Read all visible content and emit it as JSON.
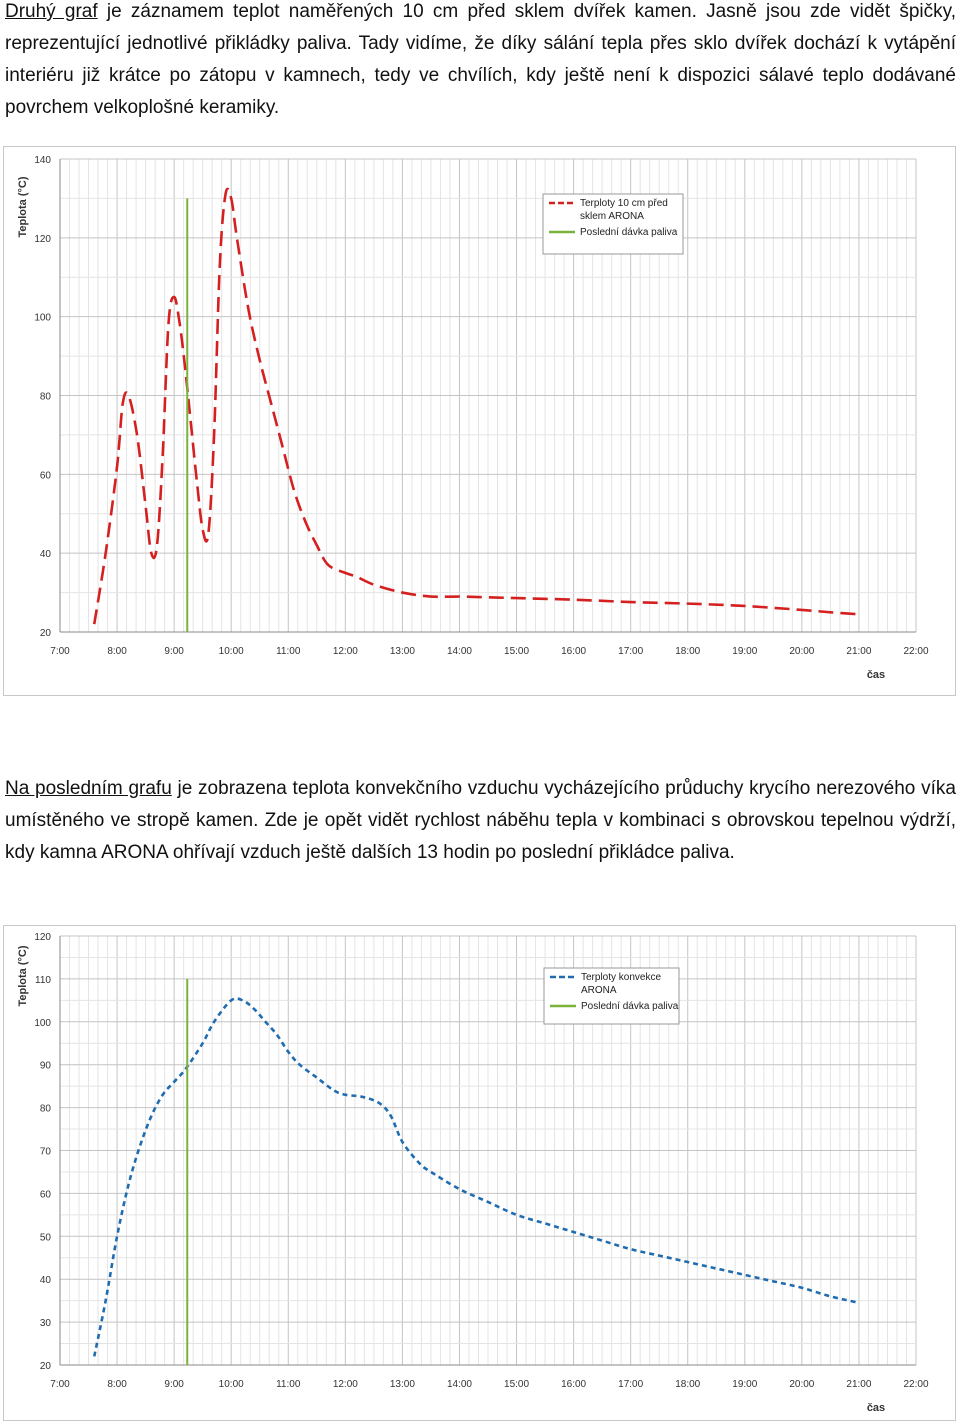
{
  "paragraph1": {
    "link_text": "Druhý graf",
    "text": " je záznamem teplot naměřených 10 cm před sklem dvířek kamen. Jasně jsou zde vidět špičky, reprezentující jednotlivé přikládky paliva. Tady vidíme, že díky sálání tepla přes sklo dvířek dochází k vytápění interiéru již krátce po zátopu v kamnech, tedy ve chvílích, kdy ještě není k dispozici sálavé teplo dodávané povrchem velkoplošné keramiky."
  },
  "paragraph2": {
    "link_text": "Na posledním grafu",
    "text": " je zobrazena teplota konvekčního vzduchu vycházejícího průduchy krycího nerezového víka umístěného ve stropě kamen. Zde je opět vidět rychlost náběhu tepla v kombinaci s obrovskou tepelnou výdrží, kdy kamna ARONA ohřívají vzduch ještě dalších 13 hodin po poslední přikládce paliva."
  },
  "chart_data": [
    {
      "type": "line",
      "ylabel": "Teplota (°C)",
      "xlabel": "čas",
      "x_ticks": [
        "7:00",
        "8:00",
        "9:00",
        "10:00",
        "11:00",
        "12:00",
        "13:00",
        "14:00",
        "15:00",
        "16:00",
        "17:00",
        "18:00",
        "19:00",
        "20:00",
        "21:00",
        "22:00"
      ],
      "y_ticks": [
        20,
        40,
        60,
        80,
        100,
        120,
        140
      ],
      "xlim": [
        7,
        22
      ],
      "ylim": [
        20,
        140
      ],
      "grid": true,
      "legend_position": "top-right",
      "series": [
        {
          "name": "Terploty 10 cm před sklem ARONA",
          "color": "#d42020",
          "dash": "dashed",
          "x": [
            7.6,
            7.8,
            8.0,
            8.1,
            8.2,
            8.35,
            8.5,
            8.6,
            8.7,
            8.8,
            8.9,
            9.0,
            9.1,
            9.2,
            9.3,
            9.4,
            9.5,
            9.6,
            9.7,
            9.8,
            9.9,
            10.0,
            10.1,
            10.3,
            10.5,
            10.7,
            10.9,
            11.1,
            11.3,
            11.5,
            11.7,
            12.0,
            12.2,
            12.5,
            13.0,
            13.5,
            14.0,
            14.5,
            15.0,
            16.0,
            17.0,
            18.0,
            19.0,
            20.0,
            20.5,
            21.0
          ],
          "y": [
            22,
            40,
            62,
            78,
            80,
            70,
            52,
            40,
            42,
            65,
            98,
            105,
            98,
            86,
            72,
            58,
            46,
            45,
            70,
            113,
            131,
            130,
            120,
            102,
            89,
            78,
            67,
            56,
            48,
            42,
            37,
            35,
            34,
            32,
            30,
            29,
            29,
            28.8,
            28.6,
            28.2,
            27.6,
            27.2,
            26.6,
            25.6,
            25,
            24.5
          ]
        },
        {
          "name": "Poslední dávka paliva",
          "color": "#7ab23c",
          "dash": "solid",
          "x": [
            9.23,
            9.23
          ],
          "y": [
            20,
            130
          ]
        }
      ]
    },
    {
      "type": "line",
      "ylabel": "Teplota (°C)",
      "xlabel": "čas",
      "x_ticks": [
        "7:00",
        "8:00",
        "9:00",
        "10:00",
        "11:00",
        "12:00",
        "13:00",
        "14:00",
        "15:00",
        "16:00",
        "17:00",
        "18:00",
        "19:00",
        "20:00",
        "21:00",
        "22:00"
      ],
      "y_ticks": [
        20,
        30,
        40,
        50,
        60,
        70,
        80,
        90,
        100,
        110,
        120
      ],
      "xlim": [
        7,
        22
      ],
      "ylim": [
        20,
        120
      ],
      "grid": true,
      "legend_position": "top-right",
      "series": [
        {
          "name": "Terploty konvekce ARONA",
          "color": "#1f6cb0",
          "dash": "dashed",
          "x": [
            7.6,
            7.8,
            8.0,
            8.2,
            8.4,
            8.6,
            8.8,
            9.0,
            9.2,
            9.5,
            9.7,
            10.0,
            10.2,
            10.4,
            10.6,
            10.8,
            11.0,
            11.2,
            11.5,
            11.8,
            12.0,
            12.3,
            12.6,
            12.8,
            13.0,
            13.3,
            13.5,
            14.0,
            14.5,
            15.0,
            15.5,
            16.0,
            16.5,
            17.0,
            17.5,
            18.0,
            18.5,
            19.0,
            19.5,
            20.0,
            20.5,
            21.0
          ],
          "y": [
            22,
            35,
            50,
            62,
            71,
            78,
            83,
            86,
            89,
            95,
            100,
            105,
            105,
            103,
            100,
            97,
            93,
            90,
            87,
            84,
            83,
            82.5,
            81,
            78,
            72,
            67,
            65,
            61,
            58,
            55,
            53,
            51,
            49,
            47,
            45.5,
            44,
            42.5,
            41,
            39.5,
            38,
            36,
            34.5
          ]
        },
        {
          "name": "Poslední dávka paliva",
          "color": "#7ab23c",
          "dash": "solid",
          "x": [
            9.23,
            9.23
          ],
          "y": [
            20,
            110
          ]
        }
      ]
    }
  ]
}
